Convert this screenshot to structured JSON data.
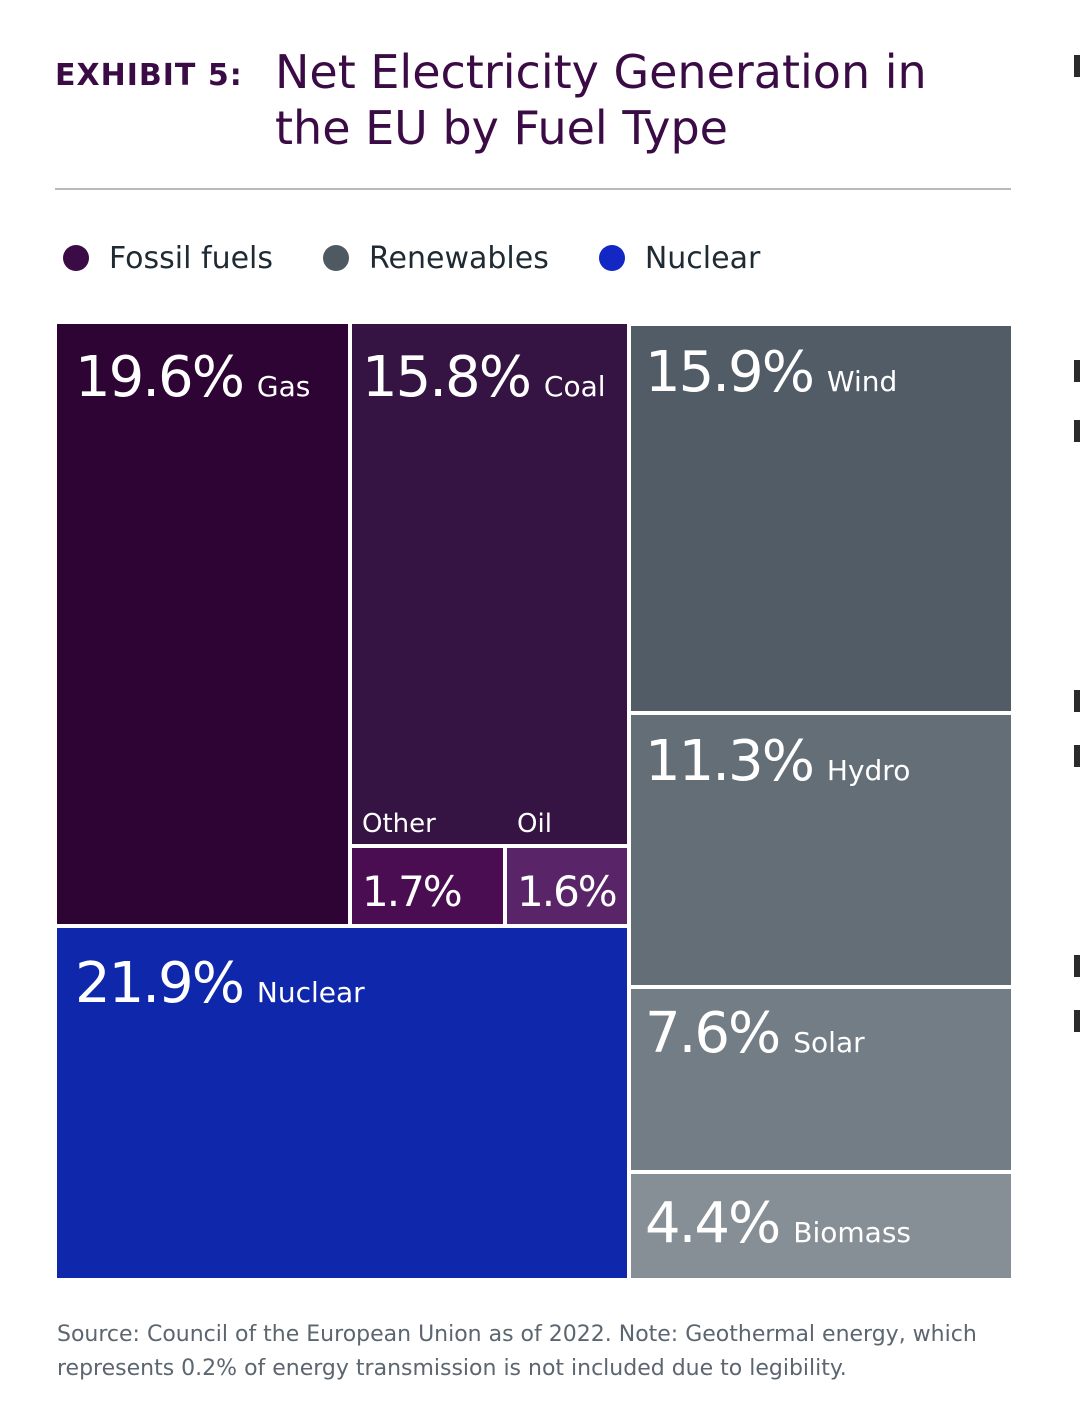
{
  "header": {
    "exhibit_label": "EXHIBIT 5:",
    "title": "Net Electricity Generation in the EU by Fuel Type"
  },
  "legend": [
    {
      "label": "Fossil fuels",
      "color": "#3b0b45"
    },
    {
      "label": "Renewables",
      "color": "#4f5962"
    },
    {
      "label": "Nuclear",
      "color": "#1327c4"
    }
  ],
  "chart_data": {
    "type": "treemap",
    "title": "Net Electricity Generation in the EU by Fuel Type",
    "unit": "%",
    "items": [
      {
        "name": "Gas",
        "value": 19.6,
        "label": "19.6%",
        "group": "Fossil fuels",
        "color": "#2e0434"
      },
      {
        "name": "Coal",
        "value": 15.8,
        "label": "15.8%",
        "group": "Fossil fuels",
        "color": "#351343"
      },
      {
        "name": "Other",
        "value": 1.7,
        "label": "1.7%",
        "group": "Fossil fuels",
        "color": "#4a0d52"
      },
      {
        "name": "Oil",
        "value": 1.6,
        "label": "1.6%",
        "group": "Fossil fuels",
        "color": "#5a2468"
      },
      {
        "name": "Nuclear",
        "value": 21.9,
        "label": "21.9%",
        "group": "Nuclear",
        "color": "#0f28ab"
      },
      {
        "name": "Wind",
        "value": 15.9,
        "label": "15.9%",
        "group": "Renewables",
        "color": "#515c66"
      },
      {
        "name": "Hydro",
        "value": 11.3,
        "label": "11.3%",
        "group": "Renewables",
        "color": "#636e77"
      },
      {
        "name": "Solar",
        "value": 7.6,
        "label": "7.6%",
        "group": "Renewables",
        "color": "#737d85"
      },
      {
        "name": "Biomass",
        "value": 4.4,
        "label": "4.4%",
        "group": "Renewables",
        "color": "#878f96"
      }
    ]
  },
  "source_note": "Source: Council of the European Union as of 2022. Note: Geothermal energy, which represents 0.2% of energy transmission is not included due to legibility."
}
